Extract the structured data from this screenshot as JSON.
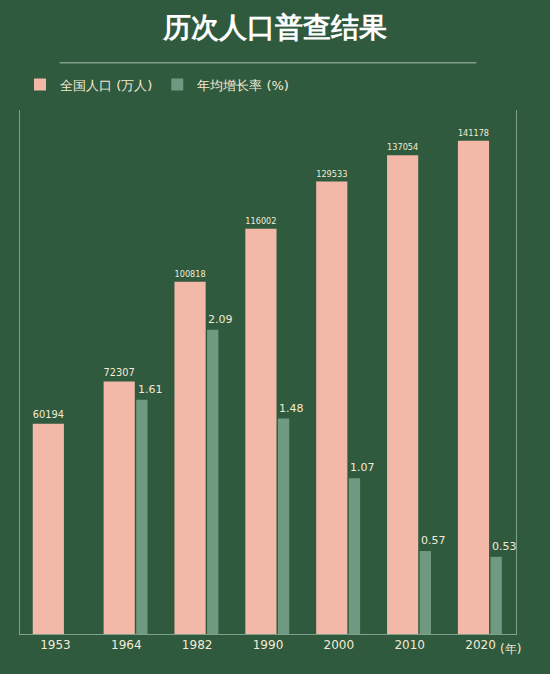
{
  "chart_data": {
    "type": "bar",
    "title": "历次人口普查结果",
    "categories": [
      "1953",
      "1964",
      "1982",
      "1990",
      "2000",
      "2010",
      "2020"
    ],
    "x_label": "(年)",
    "series": [
      {
        "name": "全国人口 (万人)",
        "color": "#f2b8a8",
        "values": [
          60194,
          72307,
          100818,
          116002,
          129533,
          137054,
          141178
        ]
      },
      {
        "name": "年均增长率 (%)",
        "color": "#6f9a82",
        "axis": "y2",
        "values": [
          null,
          1.61,
          2.09,
          1.48,
          1.07,
          0.57,
          0.53
        ]
      }
    ],
    "ylim": [
      0,
      150000
    ],
    "y2lim": [
      0,
      3.6
    ],
    "data_labels": true,
    "tick_labels": "x",
    "legend": "top left",
    "grid": false
  }
}
